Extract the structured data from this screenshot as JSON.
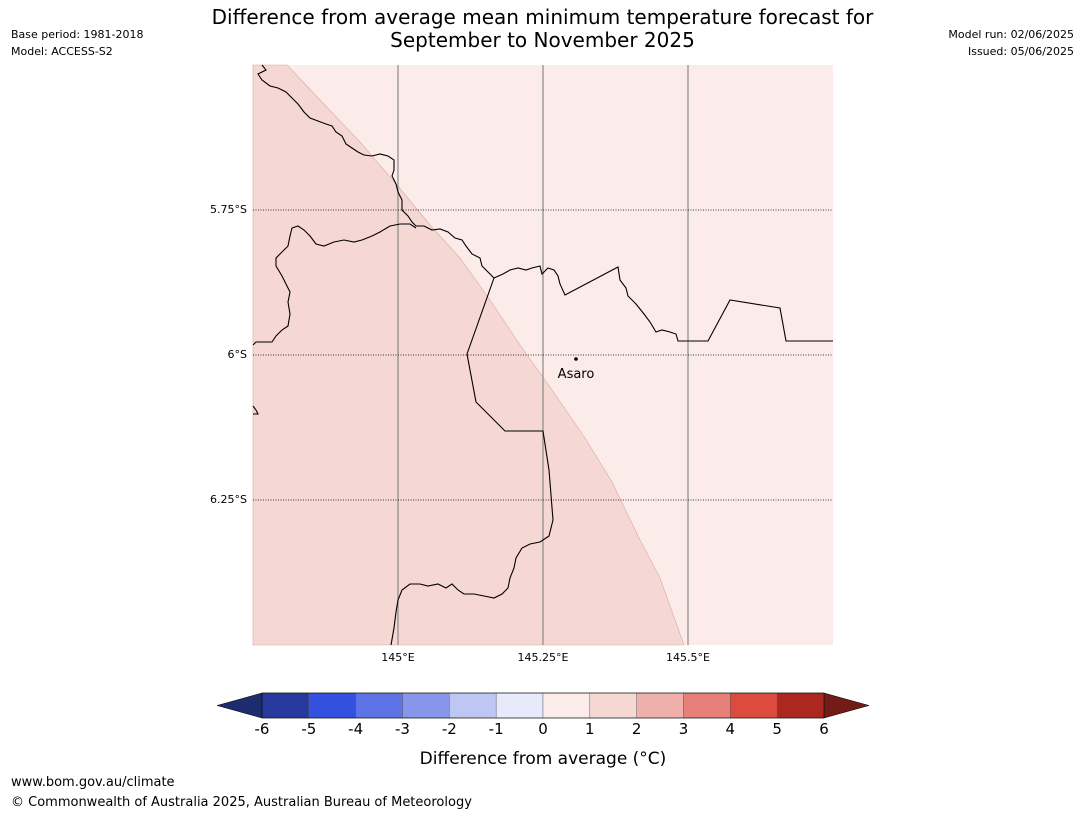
{
  "header": {
    "base_period": "Base period: 1981-2018",
    "model": "Model: ACCESS-S2",
    "title_line1": "Difference from average mean minimum temperature forecast for",
    "title_line2": "September to November 2025",
    "model_run": "Model run: 02/06/2025",
    "issued": "Issued: 05/06/2025"
  },
  "map": {
    "lat_labels": [
      "5.75°S",
      "6°S",
      "6.25°S"
    ],
    "lon_labels": [
      "145°E",
      "145.25°E",
      "145.5°E"
    ],
    "place": "Asaro",
    "region_colors": {
      "one_to_two": "#f5d7d4",
      "zero_to_one": "#fbebe9"
    }
  },
  "colorbar": {
    "ticks": [
      "-6",
      "-5",
      "-4",
      "-3",
      "-2",
      "-1",
      "0",
      "1",
      "2",
      "3",
      "4",
      "5",
      "6"
    ],
    "colors": [
      "#27399d",
      "#3350de",
      "#5d73e6",
      "#8795eb",
      "#bec6f4",
      "#e8eafb",
      "#fbebe9",
      "#f5d7d4",
      "#efb0ab",
      "#e68079",
      "#dd4a3e",
      "#ac271f"
    ],
    "extend_low_color": "#1e2c6e",
    "extend_high_color": "#731b16",
    "label": "Difference from average (°C)"
  },
  "footer": {
    "url": "www.bom.gov.au/climate",
    "copyright": "© Commonwealth of Australia 2025, Australian Bureau of Meteorology"
  }
}
